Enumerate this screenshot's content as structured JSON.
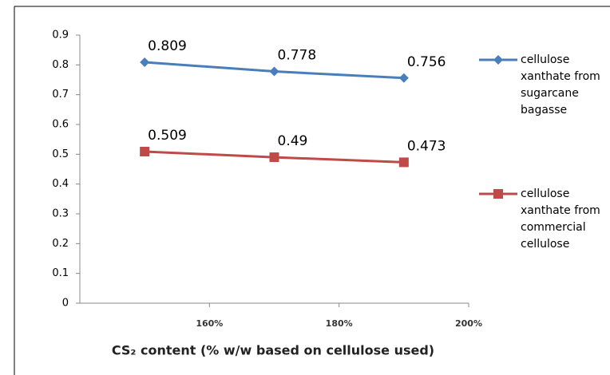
{
  "chart_data": {
    "type": "line",
    "x_label": "CS₂ content (% w/w based on cellulose used)",
    "x": [
      150,
      170,
      190
    ],
    "xlim": [
      140,
      200
    ],
    "xticks": [
      {
        "value": 160,
        "label": "160%"
      },
      {
        "value": 180,
        "label": "180%"
      },
      {
        "value": 200,
        "label": "200%"
      }
    ],
    "ylim": [
      0,
      0.9
    ],
    "yticks": [
      0,
      0.1,
      0.2,
      0.3,
      0.4,
      0.5,
      0.6,
      0.7,
      0.8,
      0.9
    ],
    "grid": false,
    "legend": "right",
    "series": [
      {
        "name": "cellulose xanthate from sugarcane bagasse",
        "color": "#4a7ebb",
        "marker": "diamond",
        "values": [
          0.809,
          0.778,
          0.756
        ]
      },
      {
        "name": "cellulose xanthate from commercial cellulose",
        "color": "#be4b48",
        "marker": "square",
        "values": [
          0.509,
          0.49,
          0.473
        ]
      }
    ]
  }
}
